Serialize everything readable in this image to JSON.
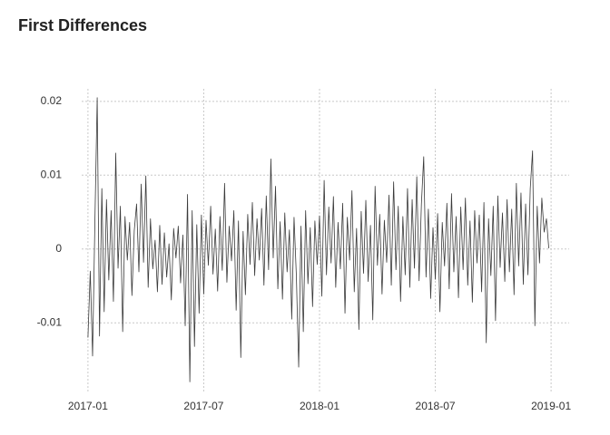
{
  "chart_data": {
    "type": "line",
    "title": "First Differences",
    "x": [
      2017.0,
      2017.01,
      2017.02,
      2017.03,
      2017.04,
      2017.05,
      2017.06,
      2017.07,
      2017.08,
      2017.09,
      2017.1,
      2017.11,
      2017.12,
      2017.13,
      2017.14,
      2017.15,
      2017.16,
      2017.17,
      2017.18,
      2017.19,
      2017.2,
      2017.21,
      2017.22,
      2017.23,
      2017.24,
      2017.25,
      2017.26,
      2017.27,
      2017.28,
      2017.29,
      2017.3,
      2017.31,
      2017.32,
      2017.33,
      2017.34,
      2017.35,
      2017.36,
      2017.37,
      2017.38,
      2017.39,
      2017.4,
      2017.41,
      2017.42,
      2017.43,
      2017.44,
      2017.45,
      2017.46,
      2017.47,
      2017.48,
      2017.49,
      2017.5,
      2017.51,
      2017.52,
      2017.53,
      2017.54,
      2017.55,
      2017.56,
      2017.57,
      2017.58,
      2017.59,
      2017.6,
      2017.61,
      2017.62,
      2017.63,
      2017.64,
      2017.65,
      2017.66,
      2017.67,
      2017.68,
      2017.69,
      2017.7,
      2017.71,
      2017.72,
      2017.73,
      2017.74,
      2017.75,
      2017.76,
      2017.77,
      2017.78,
      2017.79,
      2017.8,
      2017.81,
      2017.82,
      2017.83,
      2017.84,
      2017.85,
      2017.86,
      2017.87,
      2017.88,
      2017.89,
      2017.9,
      2017.91,
      2017.92,
      2017.93,
      2017.94,
      2017.95,
      2017.96,
      2017.97,
      2017.98,
      2017.99,
      2018.0,
      2018.01,
      2018.02,
      2018.03,
      2018.04,
      2018.05,
      2018.06,
      2018.07,
      2018.08,
      2018.09,
      2018.1,
      2018.11,
      2018.12,
      2018.13,
      2018.14,
      2018.15,
      2018.16,
      2018.17,
      2018.18,
      2018.19,
      2018.2,
      2018.21,
      2018.22,
      2018.23,
      2018.24,
      2018.25,
      2018.26,
      2018.27,
      2018.28,
      2018.29,
      2018.3,
      2018.31,
      2018.32,
      2018.33,
      2018.34,
      2018.35,
      2018.36,
      2018.37,
      2018.38,
      2018.39,
      2018.4,
      2018.41,
      2018.42,
      2018.43,
      2018.44,
      2018.45,
      2018.46,
      2018.47,
      2018.48,
      2018.49,
      2018.5,
      2018.51,
      2018.52,
      2018.53,
      2018.54,
      2018.55,
      2018.56,
      2018.57,
      2018.58,
      2018.59,
      2018.6,
      2018.61,
      2018.62,
      2018.63,
      2018.64,
      2018.65,
      2018.66,
      2018.67,
      2018.68,
      2018.69,
      2018.7,
      2018.71,
      2018.72,
      2018.73,
      2018.74,
      2018.75,
      2018.76,
      2018.77,
      2018.78,
      2018.79,
      2018.8,
      2018.81,
      2018.82,
      2018.83,
      2018.84,
      2018.85,
      2018.86,
      2018.87,
      2018.88,
      2018.89,
      2018.9,
      2018.91,
      2018.92,
      2018.93,
      2018.94,
      2018.95,
      2018.96,
      2018.97,
      2018.98,
      2018.99
    ],
    "values": [
      -0.012,
      -0.003,
      -0.0145,
      0.0037,
      0.0205,
      -0.0118,
      0.0082,
      -0.0085,
      0.0067,
      -0.0042,
      0.0052,
      -0.0071,
      0.013,
      -0.0026,
      0.0058,
      -0.0112,
      0.0044,
      -0.0015,
      0.0036,
      -0.0063,
      0.0025,
      0.0061,
      -0.0031,
      0.0088,
      -0.0018,
      0.0099,
      -0.0052,
      0.0041,
      -0.0027,
      0.0012,
      -0.0058,
      0.0032,
      -0.0048,
      0.0022,
      -0.0038,
      0.0007,
      -0.0069,
      0.0028,
      -0.0012,
      0.0031,
      -0.0046,
      0.0019,
      -0.0104,
      0.0074,
      -0.018,
      0.0052,
      -0.0132,
      0.0033,
      -0.0087,
      0.0046,
      -0.0061,
      0.0039,
      -0.0022,
      0.0058,
      -0.0034,
      0.0027,
      -0.0057,
      0.0044,
      -0.0029,
      0.0089,
      -0.0045,
      0.0031,
      -0.0016,
      0.0052,
      -0.0083,
      0.0038,
      -0.0147,
      0.0024,
      -0.0062,
      0.0047,
      -0.0021,
      0.0063,
      -0.0036,
      0.0041,
      -0.0015,
      0.0055,
      -0.0049,
      0.0072,
      -0.0028,
      0.0122,
      -0.0012,
      0.0085,
      -0.0054,
      0.0037,
      -0.0068,
      0.0049,
      -0.0031,
      0.0026,
      -0.0095,
      0.0043,
      -0.0036,
      -0.016,
      0.0031,
      -0.0112,
      0.0052,
      -0.0047,
      0.0029,
      -0.0078,
      0.0038,
      -0.0021,
      0.0045,
      -0.0064,
      0.0093,
      -0.0035,
      0.0057,
      -0.0019,
      0.0071,
      -0.0052,
      0.0036,
      -0.0027,
      0.0062,
      -0.0087,
      0.0043,
      -0.0015,
      0.0079,
      -0.0058,
      0.0028,
      -0.0109,
      0.0051,
      -0.0033,
      0.0066,
      -0.0044,
      0.0032,
      -0.0096,
      0.0085,
      -0.0022,
      0.0047,
      -0.0061,
      0.0039,
      -0.0018,
      0.0073,
      -0.0049,
      0.0091,
      -0.0028,
      0.0058,
      -0.0071,
      0.0044,
      -0.0035,
      0.0082,
      -0.0052,
      0.0067,
      -0.0026,
      0.0098,
      -0.0043,
      0.0061,
      0.0125,
      -0.0038,
      0.0054,
      -0.0067,
      0.0029,
      -0.0041,
      0.0048,
      -0.0085,
      0.0036,
      -0.0023,
      0.0062,
      -0.0054,
      0.0075,
      -0.0031,
      0.0044,
      -0.0066,
      0.0057,
      -0.0028,
      0.0069,
      -0.0049,
      0.0038,
      -0.0072,
      0.0052,
      -0.0019,
      0.0046,
      -0.0058,
      0.0063,
      -0.0127,
      0.0041,
      -0.0036,
      0.0058,
      -0.0097,
      0.0072,
      -0.0025,
      0.0049,
      -0.0044,
      0.0067,
      -0.0031,
      0.0054,
      -0.0062,
      0.0089,
      -0.0023,
      0.0076,
      -0.0048,
      0.0061,
      -0.0035,
      0.0082,
      0.0133,
      -0.0104,
      0.0058,
      -0.0019,
      0.0069,
      0.0023,
      0.0041,
      0.0001
    ],
    "color": "#3a3a3a",
    "xlim": [
      2016.973,
      2019.078
    ],
    "xticks": [
      {
        "value": 2017,
        "label": "2017-01"
      },
      {
        "value": 2017.5,
        "label": "2017-07"
      },
      {
        "value": 2018,
        "label": "2018-01"
      },
      {
        "value": 2018.5,
        "label": "2018-07"
      },
      {
        "value": 2019,
        "label": "2019-01"
      }
    ],
    "ylim": [
      -0.0193,
      0.0217
    ],
    "yticks": [
      -0.01,
      0,
      0.01,
      0.02
    ],
    "grid": true
  }
}
